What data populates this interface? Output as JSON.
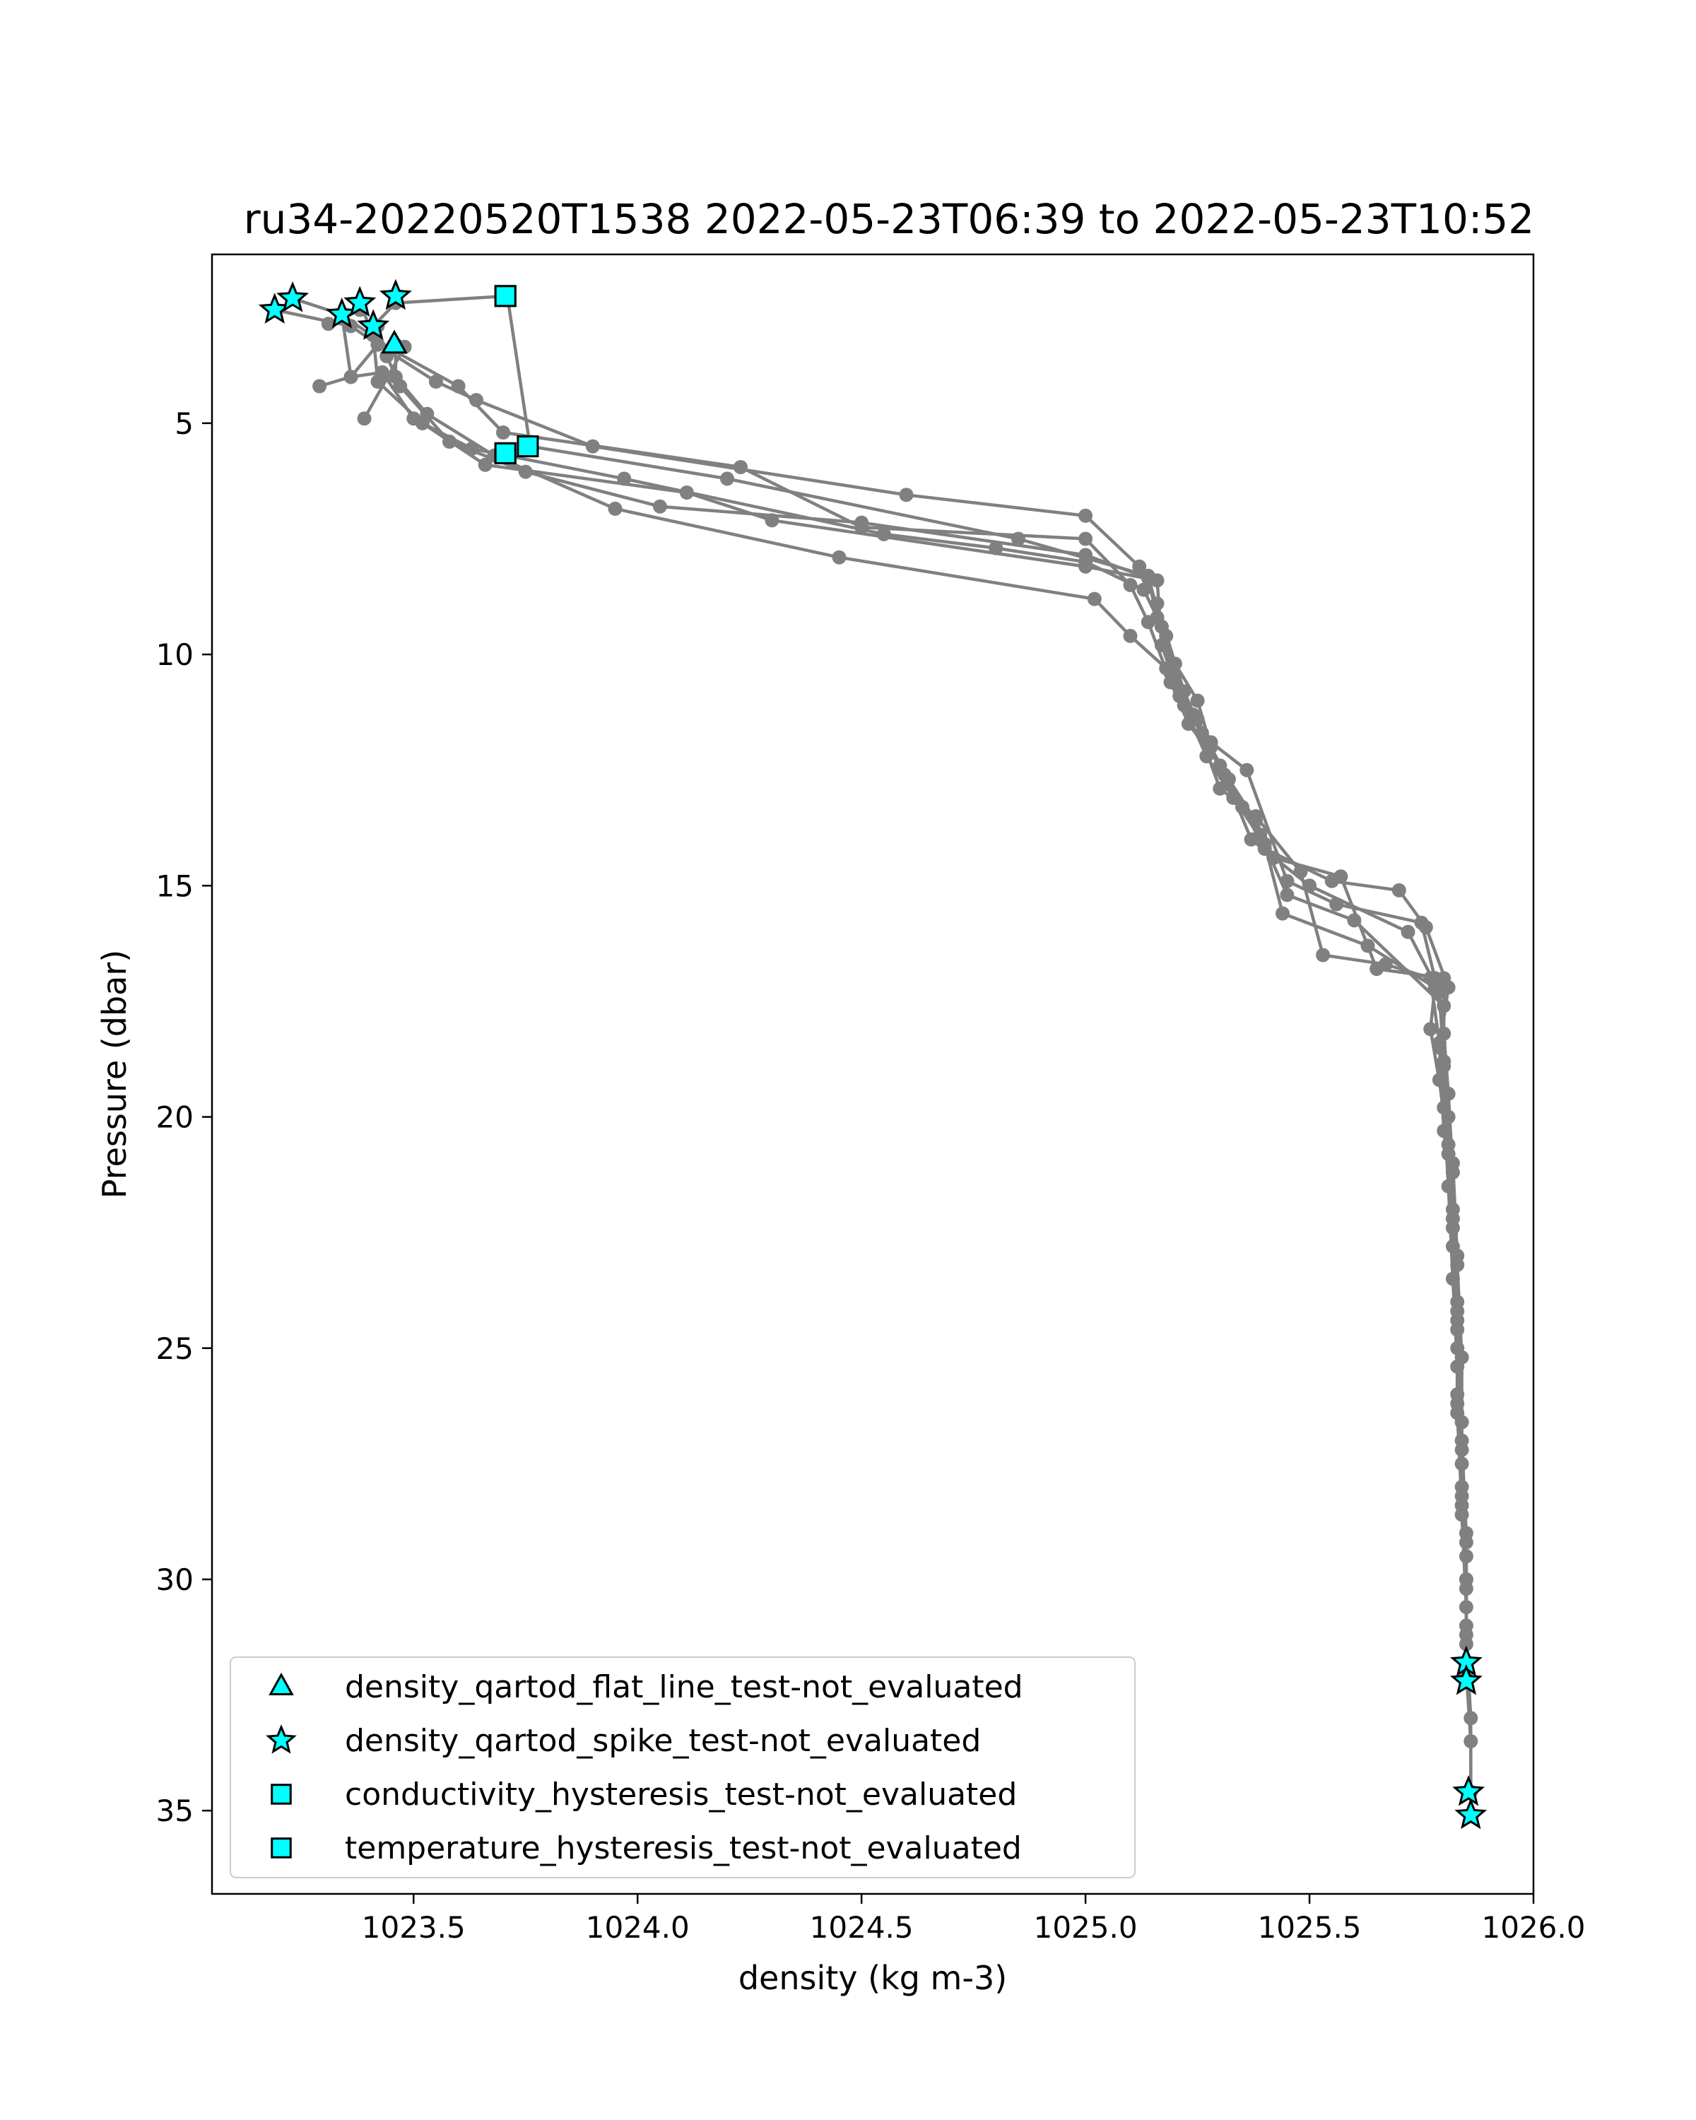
{
  "chart_data": {
    "type": "scatter",
    "title": "ru34-20220520T1538 2022-05-23T06:39 to 2022-05-23T10:52",
    "xlabel": "density (kg m-3)",
    "ylabel": "Pressure (dbar)",
    "xlim": [
      1023.05,
      1026.0
    ],
    "ylim": [
      36.8,
      1.35
    ],
    "y_inverted": true,
    "grid": false,
    "legend_position": "lower-left",
    "xticks": [
      {
        "value": 1023.5,
        "label": "1023.5"
      },
      {
        "value": 1024.0,
        "label": "1024.0"
      },
      {
        "value": 1024.5,
        "label": "1024.5"
      },
      {
        "value": 1025.0,
        "label": "1025.0"
      },
      {
        "value": 1025.5,
        "label": "1025.5"
      },
      {
        "value": 1026.0,
        "label": "1026.0"
      }
    ],
    "yticks": [
      {
        "value": 5,
        "label": "5"
      },
      {
        "value": 10,
        "label": "10"
      },
      {
        "value": 15,
        "label": "15"
      },
      {
        "value": 20,
        "label": "20"
      },
      {
        "value": 25,
        "label": "25"
      },
      {
        "value": 30,
        "label": "30"
      },
      {
        "value": 35,
        "label": "35"
      }
    ],
    "line_color": "#808080",
    "marker_color": "#00ffff",
    "profiles": [
      {
        "points": [
          [
            1023.19,
            2.55
          ],
          [
            1023.36,
            2.9
          ],
          [
            1023.42,
            3.3
          ],
          [
            1023.55,
            4.1
          ],
          [
            1023.64,
            4.5
          ],
          [
            1023.9,
            5.5
          ],
          [
            1024.6,
            6.55
          ],
          [
            1025.0,
            7.0
          ],
          [
            1025.12,
            8.1
          ],
          [
            1025.16,
            8.9
          ],
          [
            1025.2,
            10.2
          ],
          [
            1025.25,
            11.0
          ],
          [
            1025.28,
            12.0
          ],
          [
            1025.35,
            13.3
          ],
          [
            1025.4,
            14.2
          ],
          [
            1025.55,
            14.9
          ],
          [
            1025.7,
            15.1
          ],
          [
            1025.76,
            15.9
          ],
          [
            1025.81,
            17.2
          ],
          [
            1025.79,
            18.5
          ],
          [
            1025.81,
            20.0
          ],
          [
            1025.82,
            22.0
          ],
          [
            1025.83,
            24.0
          ],
          [
            1025.83,
            26.0
          ],
          [
            1025.84,
            28.0
          ],
          [
            1025.85,
            30.0
          ],
          [
            1025.85,
            31.8
          ],
          [
            1025.85,
            32.2
          ]
        ]
      },
      {
        "points": [
          [
            1023.23,
            2.3
          ],
          [
            1023.34,
            2.65
          ],
          [
            1023.45,
            3.4
          ],
          [
            1023.6,
            4.2
          ],
          [
            1023.7,
            5.2
          ],
          [
            1024.23,
            5.95
          ],
          [
            1024.5,
            7.25
          ],
          [
            1025.0,
            7.5
          ],
          [
            1025.1,
            8.5
          ],
          [
            1025.14,
            9.3
          ],
          [
            1025.19,
            10.6
          ],
          [
            1025.23,
            11.5
          ],
          [
            1025.3,
            12.4
          ],
          [
            1025.38,
            13.6
          ],
          [
            1025.42,
            14.4
          ],
          [
            1025.57,
            14.8
          ],
          [
            1025.65,
            16.8
          ],
          [
            1025.8,
            17.0
          ],
          [
            1025.8,
            18.8
          ],
          [
            1025.82,
            21.0
          ],
          [
            1025.83,
            23.0
          ],
          [
            1025.83,
            25.0
          ],
          [
            1025.84,
            27.0
          ],
          [
            1025.85,
            29.0
          ],
          [
            1025.85,
            31.0
          ]
        ]
      },
      {
        "points": [
          [
            1023.34,
            2.65
          ],
          [
            1023.36,
            4.0
          ],
          [
            1023.43,
            3.9
          ],
          [
            1023.5,
            4.9
          ],
          [
            1023.63,
            5.55
          ],
          [
            1023.97,
            6.2
          ],
          [
            1024.55,
            7.4
          ],
          [
            1024.8,
            7.7
          ],
          [
            1025.0,
            8.0
          ],
          [
            1025.13,
            8.6
          ],
          [
            1025.18,
            9.6
          ],
          [
            1025.22,
            10.8
          ],
          [
            1025.26,
            11.7
          ],
          [
            1025.32,
            12.7
          ],
          [
            1025.39,
            13.9
          ],
          [
            1025.45,
            15.2
          ],
          [
            1025.6,
            15.75
          ],
          [
            1025.8,
            17.6
          ],
          [
            1025.79,
            19.2
          ],
          [
            1025.81,
            20.8
          ],
          [
            1025.82,
            22.8
          ],
          [
            1025.83,
            24.6
          ],
          [
            1025.83,
            26.4
          ],
          [
            1025.84,
            28.4
          ],
          [
            1025.85,
            30.2
          ],
          [
            1025.85,
            32.0
          ],
          [
            1025.86,
            33.5
          ],
          [
            1025.86,
            34.6
          ]
        ]
      },
      {
        "points": [
          [
            1023.38,
            2.4
          ],
          [
            1023.41,
            3.1
          ],
          [
            1023.42,
            4.1
          ],
          [
            1023.52,
            5.0
          ],
          [
            1023.66,
            5.9
          ],
          [
            1024.11,
            6.5
          ],
          [
            1024.3,
            7.1
          ],
          [
            1025.0,
            8.1
          ],
          [
            1025.16,
            8.4
          ],
          [
            1025.17,
            9.8
          ],
          [
            1025.21,
            10.9
          ],
          [
            1025.27,
            12.2
          ],
          [
            1025.33,
            13.1
          ],
          [
            1025.4,
            14.1
          ],
          [
            1025.44,
            15.6
          ],
          [
            1025.63,
            16.3
          ],
          [
            1025.78,
            17.2
          ],
          [
            1025.77,
            18.1
          ],
          [
            1025.8,
            19.8
          ],
          [
            1025.81,
            21.5
          ],
          [
            1025.82,
            23.5
          ],
          [
            1025.83,
            25.4
          ],
          [
            1025.84,
            27.5
          ],
          [
            1025.85,
            29.5
          ],
          [
            1025.85,
            31.2
          ],
          [
            1025.86,
            33.0
          ],
          [
            1025.86,
            35.1
          ]
        ]
      },
      {
        "points": [
          [
            1023.42,
            2.9
          ],
          [
            1023.44,
            3.55
          ],
          [
            1023.47,
            4.2
          ],
          [
            1023.58,
            5.4
          ],
          [
            1023.75,
            6.05
          ],
          [
            1024.05,
            6.8
          ],
          [
            1024.5,
            7.15
          ],
          [
            1025.0,
            7.85
          ],
          [
            1025.14,
            8.35
          ],
          [
            1025.16,
            9.2
          ],
          [
            1025.19,
            10.4
          ],
          [
            1025.24,
            11.3
          ],
          [
            1025.3,
            12.9
          ],
          [
            1025.38,
            13.5
          ],
          [
            1025.48,
            14.7
          ],
          [
            1025.53,
            16.5
          ],
          [
            1025.67,
            16.7
          ],
          [
            1025.77,
            17.0
          ],
          [
            1025.79,
            18.4
          ],
          [
            1025.8,
            20.3
          ],
          [
            1025.82,
            22.2
          ],
          [
            1025.83,
            24.2
          ],
          [
            1025.83,
            26.2
          ],
          [
            1025.84,
            28.2
          ],
          [
            1025.85,
            30.0
          ]
        ]
      },
      {
        "points": [
          [
            1023.46,
            3.3
          ],
          [
            1023.46,
            4.0
          ],
          [
            1023.53,
            4.8
          ],
          [
            1023.68,
            5.7
          ],
          [
            1023.95,
            6.85
          ],
          [
            1024.45,
            7.9
          ],
          [
            1025.02,
            8.8
          ],
          [
            1025.1,
            9.6
          ],
          [
            1025.18,
            10.3
          ],
          [
            1025.22,
            11.1
          ],
          [
            1025.28,
            11.9
          ],
          [
            1025.36,
            12.5
          ],
          [
            1025.45,
            14.9
          ],
          [
            1025.56,
            15.4
          ],
          [
            1025.75,
            15.8
          ],
          [
            1025.78,
            17.0
          ],
          [
            1025.8,
            18.2
          ],
          [
            1025.81,
            19.5
          ],
          [
            1025.82,
            21.2
          ],
          [
            1025.83,
            23.2
          ],
          [
            1025.84,
            25.2
          ],
          [
            1025.84,
            27.2
          ],
          [
            1025.85,
            29.2
          ],
          [
            1025.85,
            31.4
          ]
        ]
      },
      {
        "points": [
          [
            1023.7,
            2.25
          ],
          [
            1023.71,
            2.3
          ],
          [
            1023.76,
            5.5
          ],
          [
            1024.2,
            6.2
          ],
          [
            1024.85,
            7.5
          ],
          [
            1025.14,
            8.3
          ],
          [
            1025.17,
            9.4
          ],
          [
            1025.2,
            10.5
          ],
          [
            1025.25,
            11.4
          ],
          [
            1025.31,
            12.6
          ],
          [
            1025.37,
            14.0
          ],
          [
            1025.5,
            15.0
          ],
          [
            1025.72,
            16.0
          ],
          [
            1025.79,
            17.3
          ],
          [
            1025.8,
            18.9
          ],
          [
            1025.81,
            20.6
          ],
          [
            1025.82,
            22.4
          ],
          [
            1025.83,
            24.4
          ],
          [
            1025.84,
            26.6
          ],
          [
            1025.84,
            28.6
          ],
          [
            1025.85,
            30.6
          ]
        ]
      },
      {
        "points": [
          [
            1023.41,
            2.9
          ],
          [
            1023.46,
            2.4
          ],
          [
            1023.71,
            2.25
          ]
        ]
      },
      {
        "points": [
          [
            1023.29,
            4.2
          ],
          [
            1023.36,
            4.0
          ],
          [
            1023.42,
            3.3
          ]
        ]
      },
      {
        "points": [
          [
            1023.39,
            4.9
          ],
          [
            1023.48,
            3.35
          ]
        ]
      },
      {
        "points": [
          [
            1023.31,
            2.85
          ],
          [
            1023.38,
            2.55
          ]
        ]
      }
    ],
    "flagged": [
      {
        "series": 0,
        "points": [
          [
            1023.457,
            3.3
          ]
        ]
      },
      {
        "series": 1,
        "points": [
          [
            1023.19,
            2.55
          ],
          [
            1023.23,
            2.3
          ],
          [
            1023.34,
            2.65
          ],
          [
            1023.38,
            2.4
          ],
          [
            1023.41,
            2.9
          ],
          [
            1023.46,
            2.25
          ],
          [
            1025.85,
            31.8
          ],
          [
            1025.85,
            32.2
          ],
          [
            1025.855,
            34.6
          ],
          [
            1025.86,
            35.1
          ]
        ]
      },
      {
        "series": 2,
        "points": [
          [
            1023.705,
            2.25
          ],
          [
            1023.705,
            5.65
          ],
          [
            1023.755,
            5.5
          ]
        ]
      },
      {
        "series": 3,
        "points": [
          [
            1023.705,
            2.25
          ],
          [
            1023.705,
            5.65
          ]
        ]
      }
    ],
    "series": [
      {
        "name": "density_qartod_flat_line_test-not_evaluated",
        "marker": "triangle"
      },
      {
        "name": "density_qartod_spike_test-not_evaluated",
        "marker": "star"
      },
      {
        "name": "conductivity_hysteresis_test-not_evaluated",
        "marker": "square"
      },
      {
        "name": "temperature_hysteresis_test-not_evaluated",
        "marker": "square"
      }
    ]
  }
}
